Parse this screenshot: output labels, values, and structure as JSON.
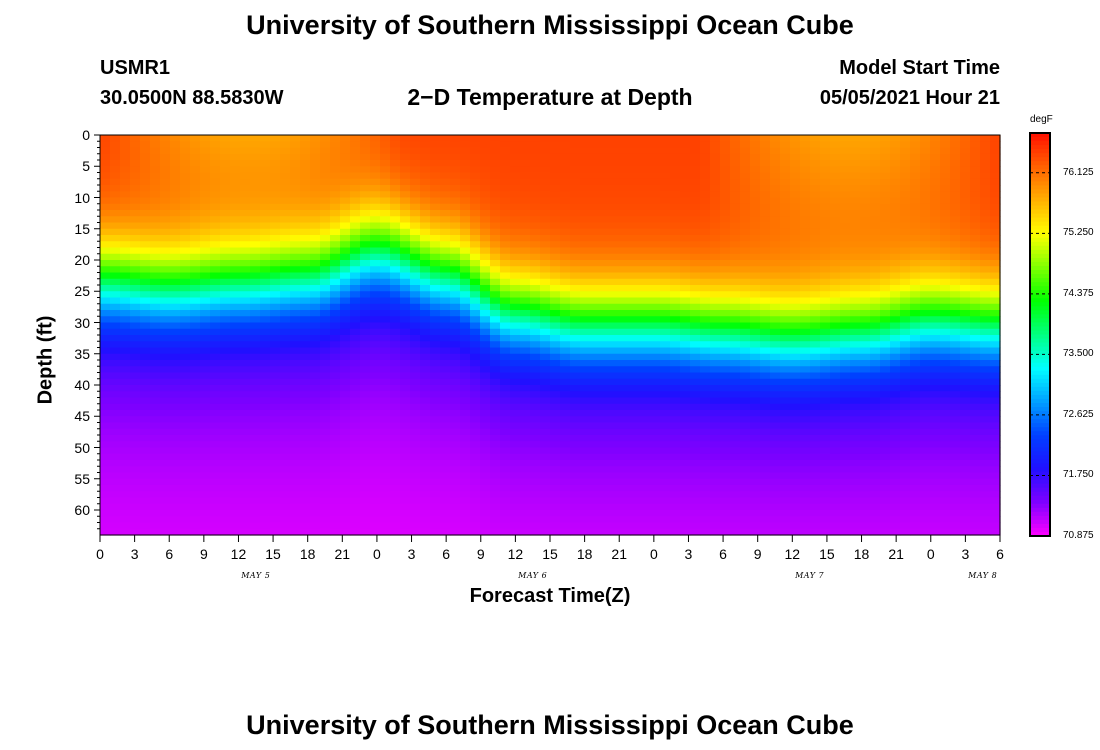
{
  "header": {
    "title_top": "University of Southern Mississippi Ocean Cube",
    "title_bottom": "University of Southern Mississippi Ocean Cube",
    "station": "USMR1",
    "coords": "30.0500N  88.5830W",
    "plot_title": "2−D Temperature at Depth",
    "model_start_label": "Model Start Time",
    "model_start_value": "05/05/2021 Hour 21"
  },
  "chart_data": {
    "type": "heatmap",
    "title": "2−D Temperature at Depth",
    "xlabel": "Forecast Time(Z)",
    "ylabel": "Depth (ft)",
    "x_ticks": [
      "0",
      "3",
      "6",
      "9",
      "12",
      "15",
      "18",
      "21",
      "0",
      "3",
      "6",
      "9",
      "12",
      "15",
      "18",
      "21",
      "0",
      "3",
      "6",
      "9",
      "12",
      "15",
      "18",
      "21",
      "0",
      "3",
      "6"
    ],
    "day_labels": [
      {
        "label": "MAY 5",
        "hour_index": 4
      },
      {
        "label": "MAY 6",
        "hour_index": 12
      },
      {
        "label": "MAY 7",
        "hour_index": 20
      },
      {
        "label": "MAY 8",
        "hour_index": 25
      }
    ],
    "y_ticks": [
      "0",
      "5",
      "10",
      "15",
      "20",
      "25",
      "30",
      "35",
      "40",
      "45",
      "50",
      "55",
      "60"
    ],
    "ylim": [
      0,
      64
    ],
    "xlim_hours": [
      0,
      78
    ],
    "colorbar": {
      "unit": "degF",
      "labels": [
        "76.125",
        "75.250",
        "74.375",
        "73.500",
        "72.625",
        "71.750",
        "70.875"
      ],
      "min": 70.875,
      "max": 76.7
    },
    "profile_summary": {
      "surface_temp_degF": 76.4,
      "bottom_temp_degF": 70.9,
      "thermocline_depth_ft": [
        {
          "hour": 0,
          "depth": 22
        },
        {
          "hour": 6,
          "depth": 23
        },
        {
          "hour": 12,
          "depth": 22
        },
        {
          "hour": 18,
          "depth": 21
        },
        {
          "hour": 24,
          "depth": 17
        },
        {
          "hour": 30,
          "depth": 21
        },
        {
          "hour": 36,
          "depth": 27
        },
        {
          "hour": 42,
          "depth": 29
        },
        {
          "hour": 48,
          "depth": 29
        },
        {
          "hour": 54,
          "depth": 30
        },
        {
          "hour": 60,
          "depth": 31
        },
        {
          "hour": 66,
          "depth": 30
        },
        {
          "hour": 72,
          "depth": 28
        },
        {
          "hour": 78,
          "depth": 29
        }
      ]
    }
  },
  "colors": {
    "scale": [
      "#ff00ff",
      "#7f00ff",
      "#2010ff",
      "#0040ff",
      "#00a0ff",
      "#00ffff",
      "#00ff80",
      "#00ff00",
      "#80ff00",
      "#ffff00",
      "#ffb000",
      "#ff6000",
      "#ff1000"
    ]
  }
}
